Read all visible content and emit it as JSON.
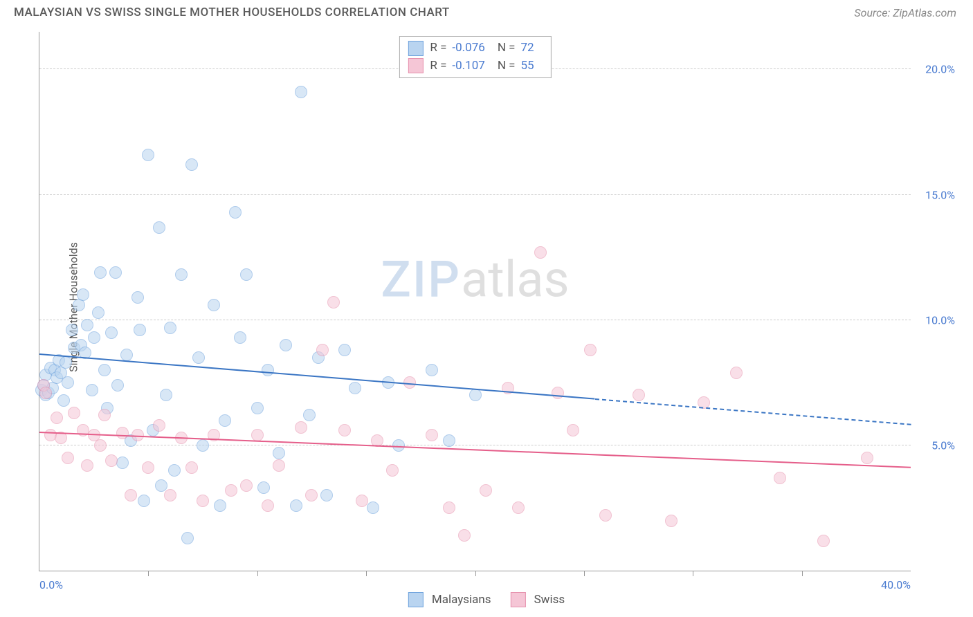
{
  "header": {
    "title": "MALAYSIAN VS SWISS SINGLE MOTHER HOUSEHOLDS CORRELATION CHART",
    "source": "Source: ZipAtlas.com"
  },
  "chart": {
    "type": "scatter",
    "ylabel": "Single Mother Households",
    "xlim": [
      0,
      40
    ],
    "ylim": [
      0,
      21.5
    ],
    "xtick_step": 5,
    "ytick_step": 5,
    "xtick_labels": [
      {
        "x": 0,
        "text": "0.0%",
        "pos": "left"
      },
      {
        "x": 40,
        "text": "40.0%",
        "pos": "right"
      }
    ],
    "ytick_labels": [
      {
        "y": 5,
        "text": "5.0%"
      },
      {
        "y": 10,
        "text": "10.0%"
      },
      {
        "y": 15,
        "text": "15.0%"
      },
      {
        "y": 20,
        "text": "20.0%"
      }
    ],
    "grid_color": "#cccccc",
    "axis_color": "#999999",
    "background_color": "#ffffff",
    "marker_radius": 9,
    "marker_border_width": 1.5,
    "label_color": "#4a7bd0",
    "watermark": {
      "zip": "ZIP",
      "atlas": "atlas"
    },
    "legend": {
      "series1_label": "Malaysians",
      "series2_label": "Swiss"
    },
    "stats": {
      "r_label": "R =",
      "n_label": "N =",
      "series1": {
        "r": "-0.076",
        "n": "72"
      },
      "series2": {
        "r": "-0.107",
        "n": "55"
      }
    },
    "series": [
      {
        "name": "Malaysians",
        "fill": "#b9d4f0",
        "fill_opacity": 0.55,
        "stroke": "#6fa3dd",
        "regression": {
          "color": "#3b76c4",
          "width": 2.5,
          "solid_xmax": 25.5,
          "y_at_x0": 8.6,
          "y_at_xmax": 5.8
        },
        "points": [
          [
            0.1,
            7.2
          ],
          [
            0.2,
            7.4
          ],
          [
            0.3,
            7.8
          ],
          [
            0.3,
            7.0
          ],
          [
            0.4,
            7.1
          ],
          [
            0.5,
            8.1
          ],
          [
            0.6,
            7.3
          ],
          [
            0.7,
            8.0
          ],
          [
            0.8,
            7.7
          ],
          [
            0.9,
            8.4
          ],
          [
            1.0,
            7.9
          ],
          [
            1.1,
            6.8
          ],
          [
            1.2,
            8.3
          ],
          [
            1.3,
            7.5
          ],
          [
            1.5,
            9.6
          ],
          [
            1.6,
            8.9
          ],
          [
            1.8,
            10.6
          ],
          [
            1.9,
            9.0
          ],
          [
            2.0,
            11.0
          ],
          [
            2.1,
            8.7
          ],
          [
            2.2,
            9.8
          ],
          [
            2.4,
            7.2
          ],
          [
            2.5,
            9.3
          ],
          [
            2.7,
            10.3
          ],
          [
            2.8,
            11.9
          ],
          [
            3.0,
            8.0
          ],
          [
            3.1,
            6.5
          ],
          [
            3.3,
            9.5
          ],
          [
            3.5,
            11.9
          ],
          [
            3.6,
            7.4
          ],
          [
            3.8,
            4.3
          ],
          [
            4.0,
            8.6
          ],
          [
            4.2,
            5.2
          ],
          [
            4.5,
            10.9
          ],
          [
            4.6,
            9.6
          ],
          [
            4.8,
            2.8
          ],
          [
            5.0,
            16.6
          ],
          [
            5.2,
            5.6
          ],
          [
            5.5,
            13.7
          ],
          [
            5.6,
            3.4
          ],
          [
            5.8,
            7.0
          ],
          [
            6.0,
            9.7
          ],
          [
            6.2,
            4.0
          ],
          [
            6.5,
            11.8
          ],
          [
            6.8,
            1.3
          ],
          [
            7.0,
            16.2
          ],
          [
            7.3,
            8.5
          ],
          [
            7.5,
            5.0
          ],
          [
            8.0,
            10.6
          ],
          [
            8.3,
            2.6
          ],
          [
            8.5,
            6.0
          ],
          [
            9.0,
            14.3
          ],
          [
            9.2,
            9.3
          ],
          [
            9.5,
            11.8
          ],
          [
            10.0,
            6.5
          ],
          [
            10.3,
            3.3
          ],
          [
            10.5,
            8.0
          ],
          [
            11.0,
            4.7
          ],
          [
            11.3,
            9.0
          ],
          [
            11.8,
            2.6
          ],
          [
            12.0,
            19.1
          ],
          [
            12.4,
            6.2
          ],
          [
            12.8,
            8.5
          ],
          [
            13.2,
            3.0
          ],
          [
            14.0,
            8.8
          ],
          [
            14.5,
            7.3
          ],
          [
            15.3,
            2.5
          ],
          [
            16.0,
            7.5
          ],
          [
            16.5,
            5.0
          ],
          [
            18.0,
            8.0
          ],
          [
            18.8,
            5.2
          ],
          [
            20.0,
            7.0
          ]
        ]
      },
      {
        "name": "Swiss",
        "fill": "#f5c6d6",
        "fill_opacity": 0.55,
        "stroke": "#e691ad",
        "regression": {
          "color": "#e55e8a",
          "width": 2.5,
          "solid_xmax": 40,
          "y_at_x0": 5.5,
          "y_at_xmax": 4.1
        },
        "points": [
          [
            0.2,
            7.4
          ],
          [
            0.3,
            7.1
          ],
          [
            0.5,
            5.4
          ],
          [
            0.8,
            6.1
          ],
          [
            1.0,
            5.3
          ],
          [
            1.3,
            4.5
          ],
          [
            1.6,
            6.3
          ],
          [
            2.0,
            5.6
          ],
          [
            2.2,
            4.2
          ],
          [
            2.5,
            5.4
          ],
          [
            2.8,
            5.0
          ],
          [
            3.0,
            6.2
          ],
          [
            3.3,
            4.4
          ],
          [
            3.8,
            5.5
          ],
          [
            4.2,
            3.0
          ],
          [
            4.5,
            5.4
          ],
          [
            5.0,
            4.1
          ],
          [
            5.5,
            5.8
          ],
          [
            6.0,
            3.0
          ],
          [
            6.5,
            5.3
          ],
          [
            7.0,
            4.1
          ],
          [
            7.5,
            2.8
          ],
          [
            8.0,
            5.4
          ],
          [
            8.8,
            3.2
          ],
          [
            9.5,
            3.4
          ],
          [
            10.0,
            5.4
          ],
          [
            10.5,
            2.6
          ],
          [
            11.0,
            4.2
          ],
          [
            12.0,
            5.7
          ],
          [
            12.5,
            3.0
          ],
          [
            13.0,
            8.8
          ],
          [
            13.5,
            10.7
          ],
          [
            14.0,
            5.6
          ],
          [
            14.8,
            2.8
          ],
          [
            15.5,
            5.2
          ],
          [
            16.2,
            4.0
          ],
          [
            17.0,
            7.5
          ],
          [
            18.0,
            5.4
          ],
          [
            18.8,
            2.5
          ],
          [
            19.5,
            1.4
          ],
          [
            20.5,
            3.2
          ],
          [
            21.5,
            7.3
          ],
          [
            22.0,
            2.5
          ],
          [
            23.0,
            12.7
          ],
          [
            23.8,
            7.1
          ],
          [
            24.5,
            5.6
          ],
          [
            25.3,
            8.8
          ],
          [
            26.0,
            2.2
          ],
          [
            27.5,
            7.0
          ],
          [
            29.0,
            2.0
          ],
          [
            30.5,
            6.7
          ],
          [
            32.0,
            7.9
          ],
          [
            34.0,
            3.7
          ],
          [
            36.0,
            1.2
          ],
          [
            38.0,
            4.5
          ]
        ]
      }
    ]
  }
}
